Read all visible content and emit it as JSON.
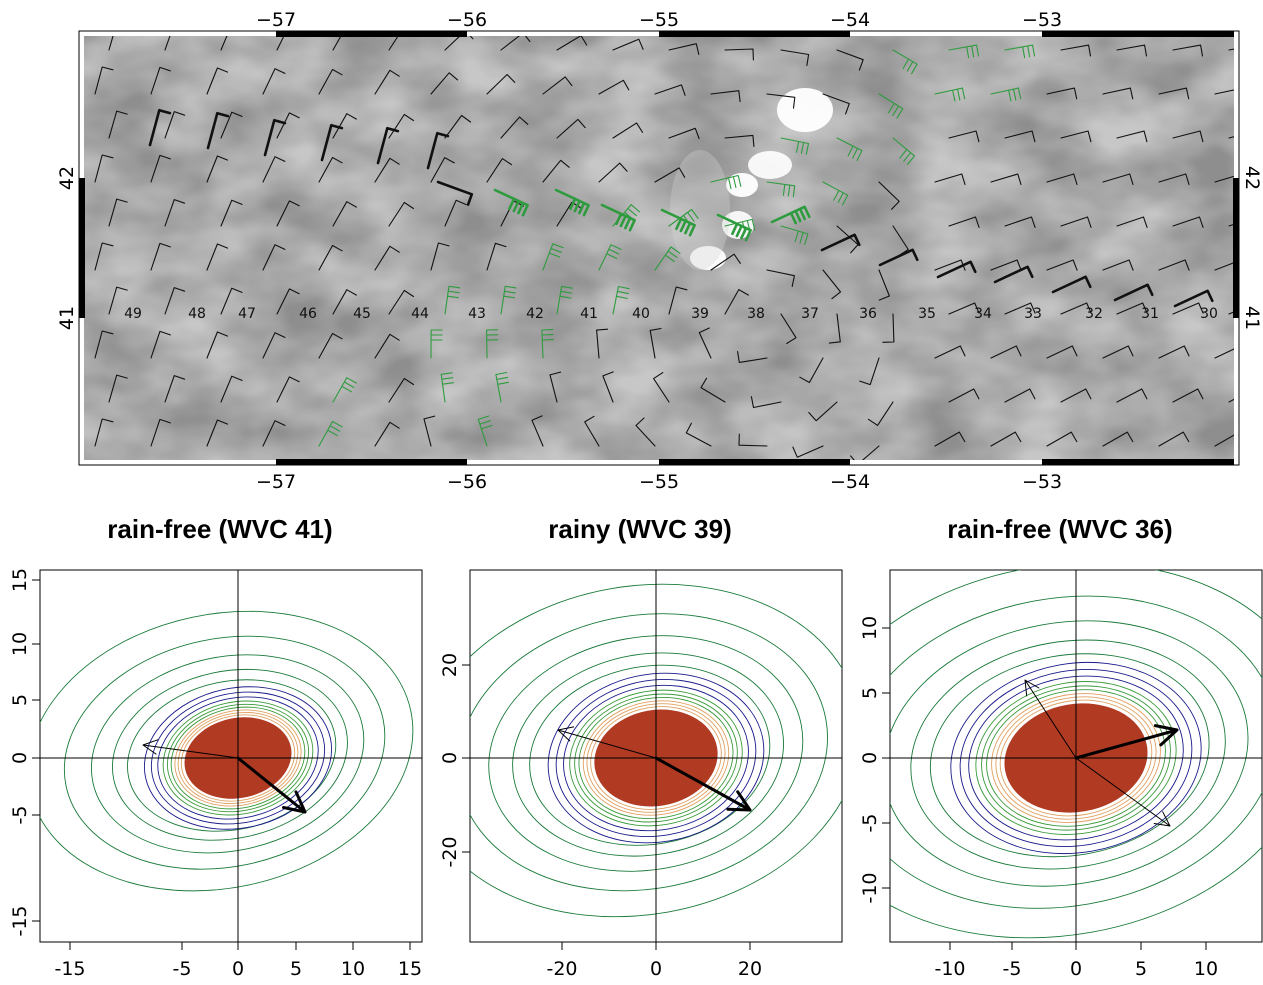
{
  "map": {
    "top_ticks": [
      "−57",
      "−56",
      "−55",
      "−54",
      "−53"
    ],
    "bottom_ticks": [
      "−57",
      "−56",
      "−55",
      "−54",
      "−53"
    ],
    "left_ticks": [
      "42",
      "41"
    ],
    "right_ticks": [
      "42",
      "41"
    ],
    "wvc_labels": [
      "49",
      "48",
      "47",
      "46",
      "45",
      "44",
      "43",
      "42",
      "41",
      "40",
      "39",
      "38",
      "37",
      "36",
      "35",
      "34",
      "33",
      "32",
      "31",
      "30"
    ],
    "colors": {
      "barb_rain_free": "#111111",
      "barb_rainy": "#2e9b3e",
      "background_gray": "#9a9a9a",
      "cloud_white": "#ffffff"
    }
  },
  "panels": [
    {
      "title": "rain-free (WVC 41)",
      "x_ticks": [
        "-15",
        "-5",
        "0",
        "5",
        "10",
        "15"
      ],
      "y_ticks": [
        "15",
        "10",
        "5",
        "0",
        "-5",
        "-15"
      ]
    },
    {
      "title": "rainy (WVC 39)",
      "x_ticks": [
        "-20",
        "0",
        "20"
      ],
      "y_ticks": [
        "20",
        "0",
        "-20"
      ]
    },
    {
      "title": "rain-free (WVC 36)",
      "x_ticks": [
        "-10",
        "-5",
        "0",
        "5",
        "10"
      ],
      "y_ticks": [
        "10",
        "5",
        "0",
        "-5",
        "-10"
      ]
    }
  ],
  "contour_colors": {
    "blob": "#b03a22",
    "inner": "#e0a060",
    "mid": "#3a9a3a",
    "outer": "#1a7a3a",
    "minima": "#1a1a8a"
  }
}
